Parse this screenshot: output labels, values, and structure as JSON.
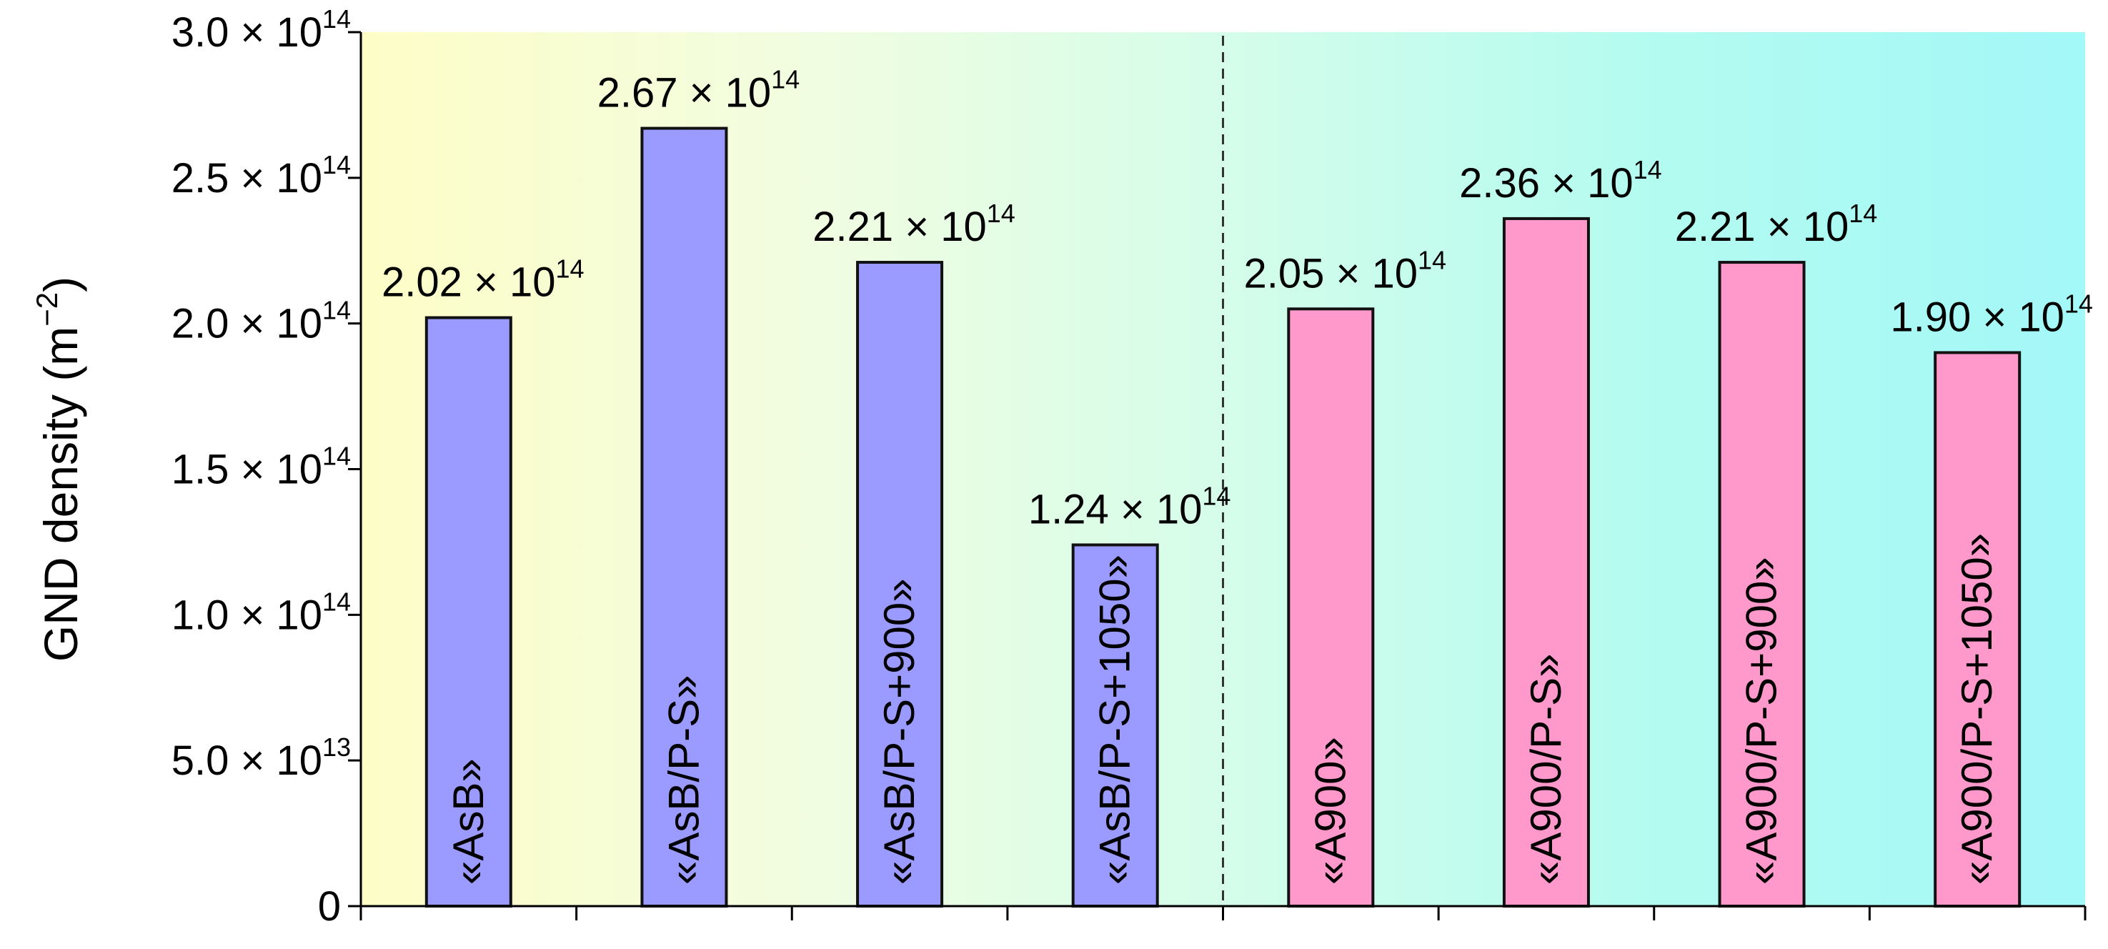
{
  "chart_data": {
    "type": "bar",
    "ylabel": "GND density (m",
    "ylabel_exp": "−2",
    "ylabel_close": ")",
    "ylim": [
      0,
      300000000000000.0
    ],
    "yticks": [
      {
        "value": 0,
        "mantissa": "0",
        "exp": ""
      },
      {
        "value": 50000000000000.0,
        "mantissa": "5.0 × 10",
        "exp": "13"
      },
      {
        "value": 100000000000000.0,
        "mantissa": "1.0 × 10",
        "exp": "14"
      },
      {
        "value": 150000000000000.0,
        "mantissa": "1.5 × 10",
        "exp": "14"
      },
      {
        "value": 200000000000000.0,
        "mantissa": "2.0 × 10",
        "exp": "14"
      },
      {
        "value": 250000000000000.0,
        "mantissa": "2.5 × 10",
        "exp": "14"
      },
      {
        "value": 300000000000000.0,
        "mantissa": "3.0 × 10",
        "exp": "14"
      }
    ],
    "categories": [
      "«AsB»",
      "«AsB/P-S»",
      "«AsB/P-S+900»",
      "«AsB/P-S+1050»",
      "«A900»",
      "«A900/P-S»",
      "«A900/P-S+900»",
      "«A900/P-S+1050»"
    ],
    "values": [
      202000000000000.0,
      267000000000000.0,
      221000000000000.0,
      124000000000000.0,
      205000000000000.0,
      236000000000000.0,
      221000000000000.0,
      190000000000000.0
    ],
    "value_labels": [
      {
        "mantissa": "2.02 × 10",
        "exp": "14"
      },
      {
        "mantissa": "2.67 × 10",
        "exp": "14"
      },
      {
        "mantissa": "2.21 × 10",
        "exp": "14"
      },
      {
        "mantissa": "1.24 × 10",
        "exp": "14"
      },
      {
        "mantissa": "2.05 × 10",
        "exp": "14"
      },
      {
        "mantissa": "2.36 × 10",
        "exp": "14"
      },
      {
        "mantissa": "2.21 × 10",
        "exp": "14"
      },
      {
        "mantissa": "1.90 × 10",
        "exp": "14"
      }
    ],
    "bar_colors": [
      "#9b9bff",
      "#9b9bff",
      "#9b9bff",
      "#9b9bff",
      "#ff99cc",
      "#ff99cc",
      "#ff99cc",
      "#ff99cc"
    ],
    "background_gradient": [
      "#fdfdc6",
      "#f2fde0",
      "#d5fdea",
      "#b3fbf0",
      "#a3f8f8"
    ],
    "divider_after_index": 3,
    "grid": false,
    "legend": "none"
  }
}
